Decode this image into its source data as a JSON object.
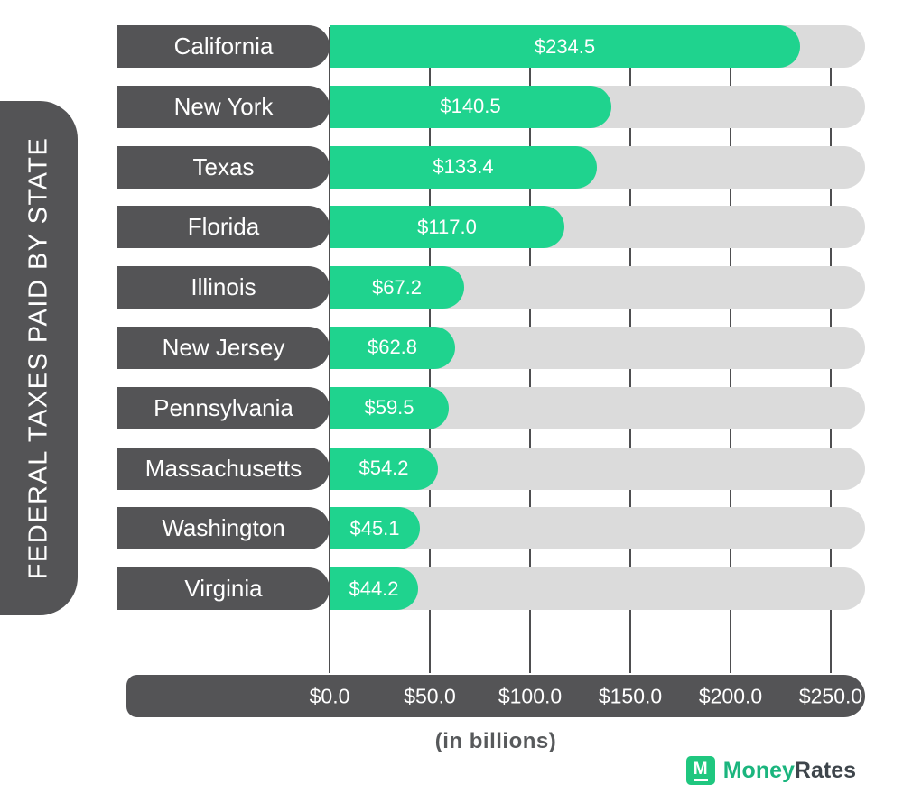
{
  "chart_data": {
    "type": "bar",
    "orientation": "horizontal",
    "title": "FEDERAL TAXES PAID BY STATE",
    "xlabel": "(in billions)",
    "categories": [
      "California",
      "New York",
      "Texas",
      "Florida",
      "Illinois",
      "New Jersey",
      "Pennsylvania",
      "Massachusetts",
      "Washington",
      "Virginia"
    ],
    "values": [
      234.5,
      140.5,
      133.4,
      117.0,
      67.2,
      62.8,
      59.5,
      54.2,
      45.1,
      44.2
    ],
    "value_labels": [
      "$234.5",
      "$140.5",
      "$133.4",
      "$117.0",
      "$67.2",
      "$62.8",
      "$59.5",
      "$54.2",
      "$45.1",
      "$44.2"
    ],
    "x_ticks": [
      "$0.0",
      "$50.0",
      "$100.0",
      "$150.0",
      "$200.0",
      "$250.0"
    ],
    "xlim": [
      0,
      250
    ],
    "grid": true,
    "legend": "none",
    "colors": {
      "bar_fill": "#1fd38e",
      "bar_track": "#dbdbdb",
      "dark_pill": "#545456",
      "gridline": "#4e4e50",
      "text_on_dark": "#ffffff",
      "axis_caption": "#57595b"
    }
  },
  "footer": {
    "caption": "(in billions)",
    "brand_icon_letter": "M",
    "brand_money": "Money",
    "brand_rates": "Rates"
  }
}
